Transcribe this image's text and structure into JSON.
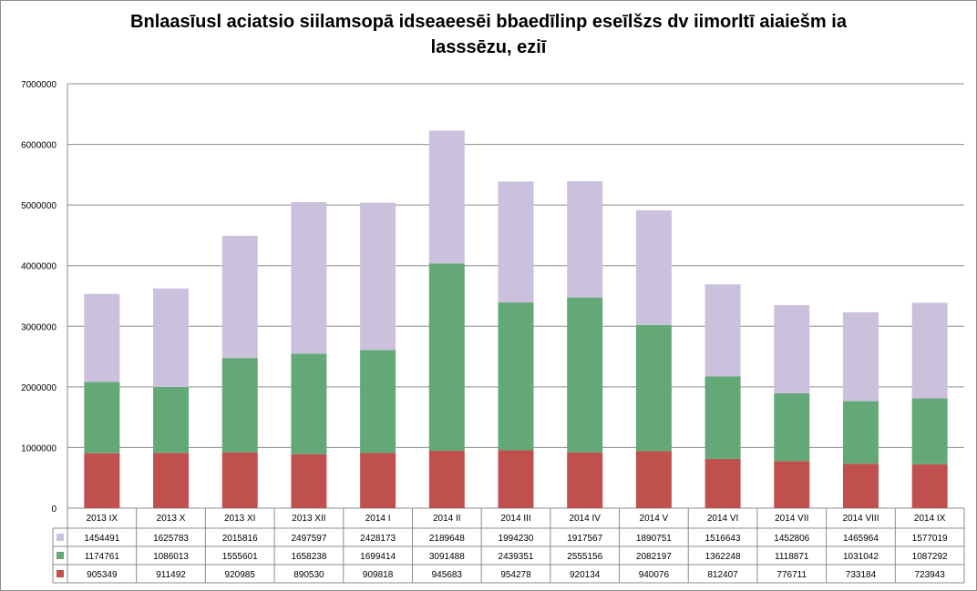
{
  "chart_data": {
    "type": "bar",
    "stacked": true,
    "title_lines": [
      "Bnlaasīusl aciatsio siilamsopā idseaeesēi bbaedīlinp eseīlšzs dv iimorltī aiaiešm ia",
      "lasssēzu, eziī"
    ],
    "categories": [
      "2013 IX",
      "2013 X",
      "2013 XI",
      "2013 XII",
      "2014 I",
      "2014 II",
      "2014 III",
      "2014 IV",
      "2014 V",
      "2014 VI",
      "2014 VII",
      "2014 VIII",
      "2014 IX"
    ],
    "series": [
      {
        "color": "#c0504d",
        "values": [
          905349,
          911492,
          920985,
          890530,
          909818,
          945683,
          954278,
          920134,
          940076,
          812407,
          776711,
          733184,
          723943
        ]
      },
      {
        "color": "#64a878",
        "values": [
          1174761,
          1086013,
          1555601,
          1658238,
          1699414,
          3091488,
          2439351,
          2555156,
          2082197,
          1362248,
          1118871,
          1031042,
          1087292
        ]
      },
      {
        "color": "#ccc1dc",
        "values": [
          1454491,
          1625783,
          2015816,
          2497597,
          2428173,
          2189648,
          1994230,
          1917567,
          1890751,
          1516643,
          1452806,
          1465964,
          1577019
        ]
      }
    ],
    "ylim": [
      0,
      7000000
    ],
    "yticks": [
      "0",
      "1000000",
      "2000000",
      "3000000",
      "4000000",
      "5000000",
      "6000000",
      "7000000"
    ],
    "grid": true,
    "data_table": true
  }
}
